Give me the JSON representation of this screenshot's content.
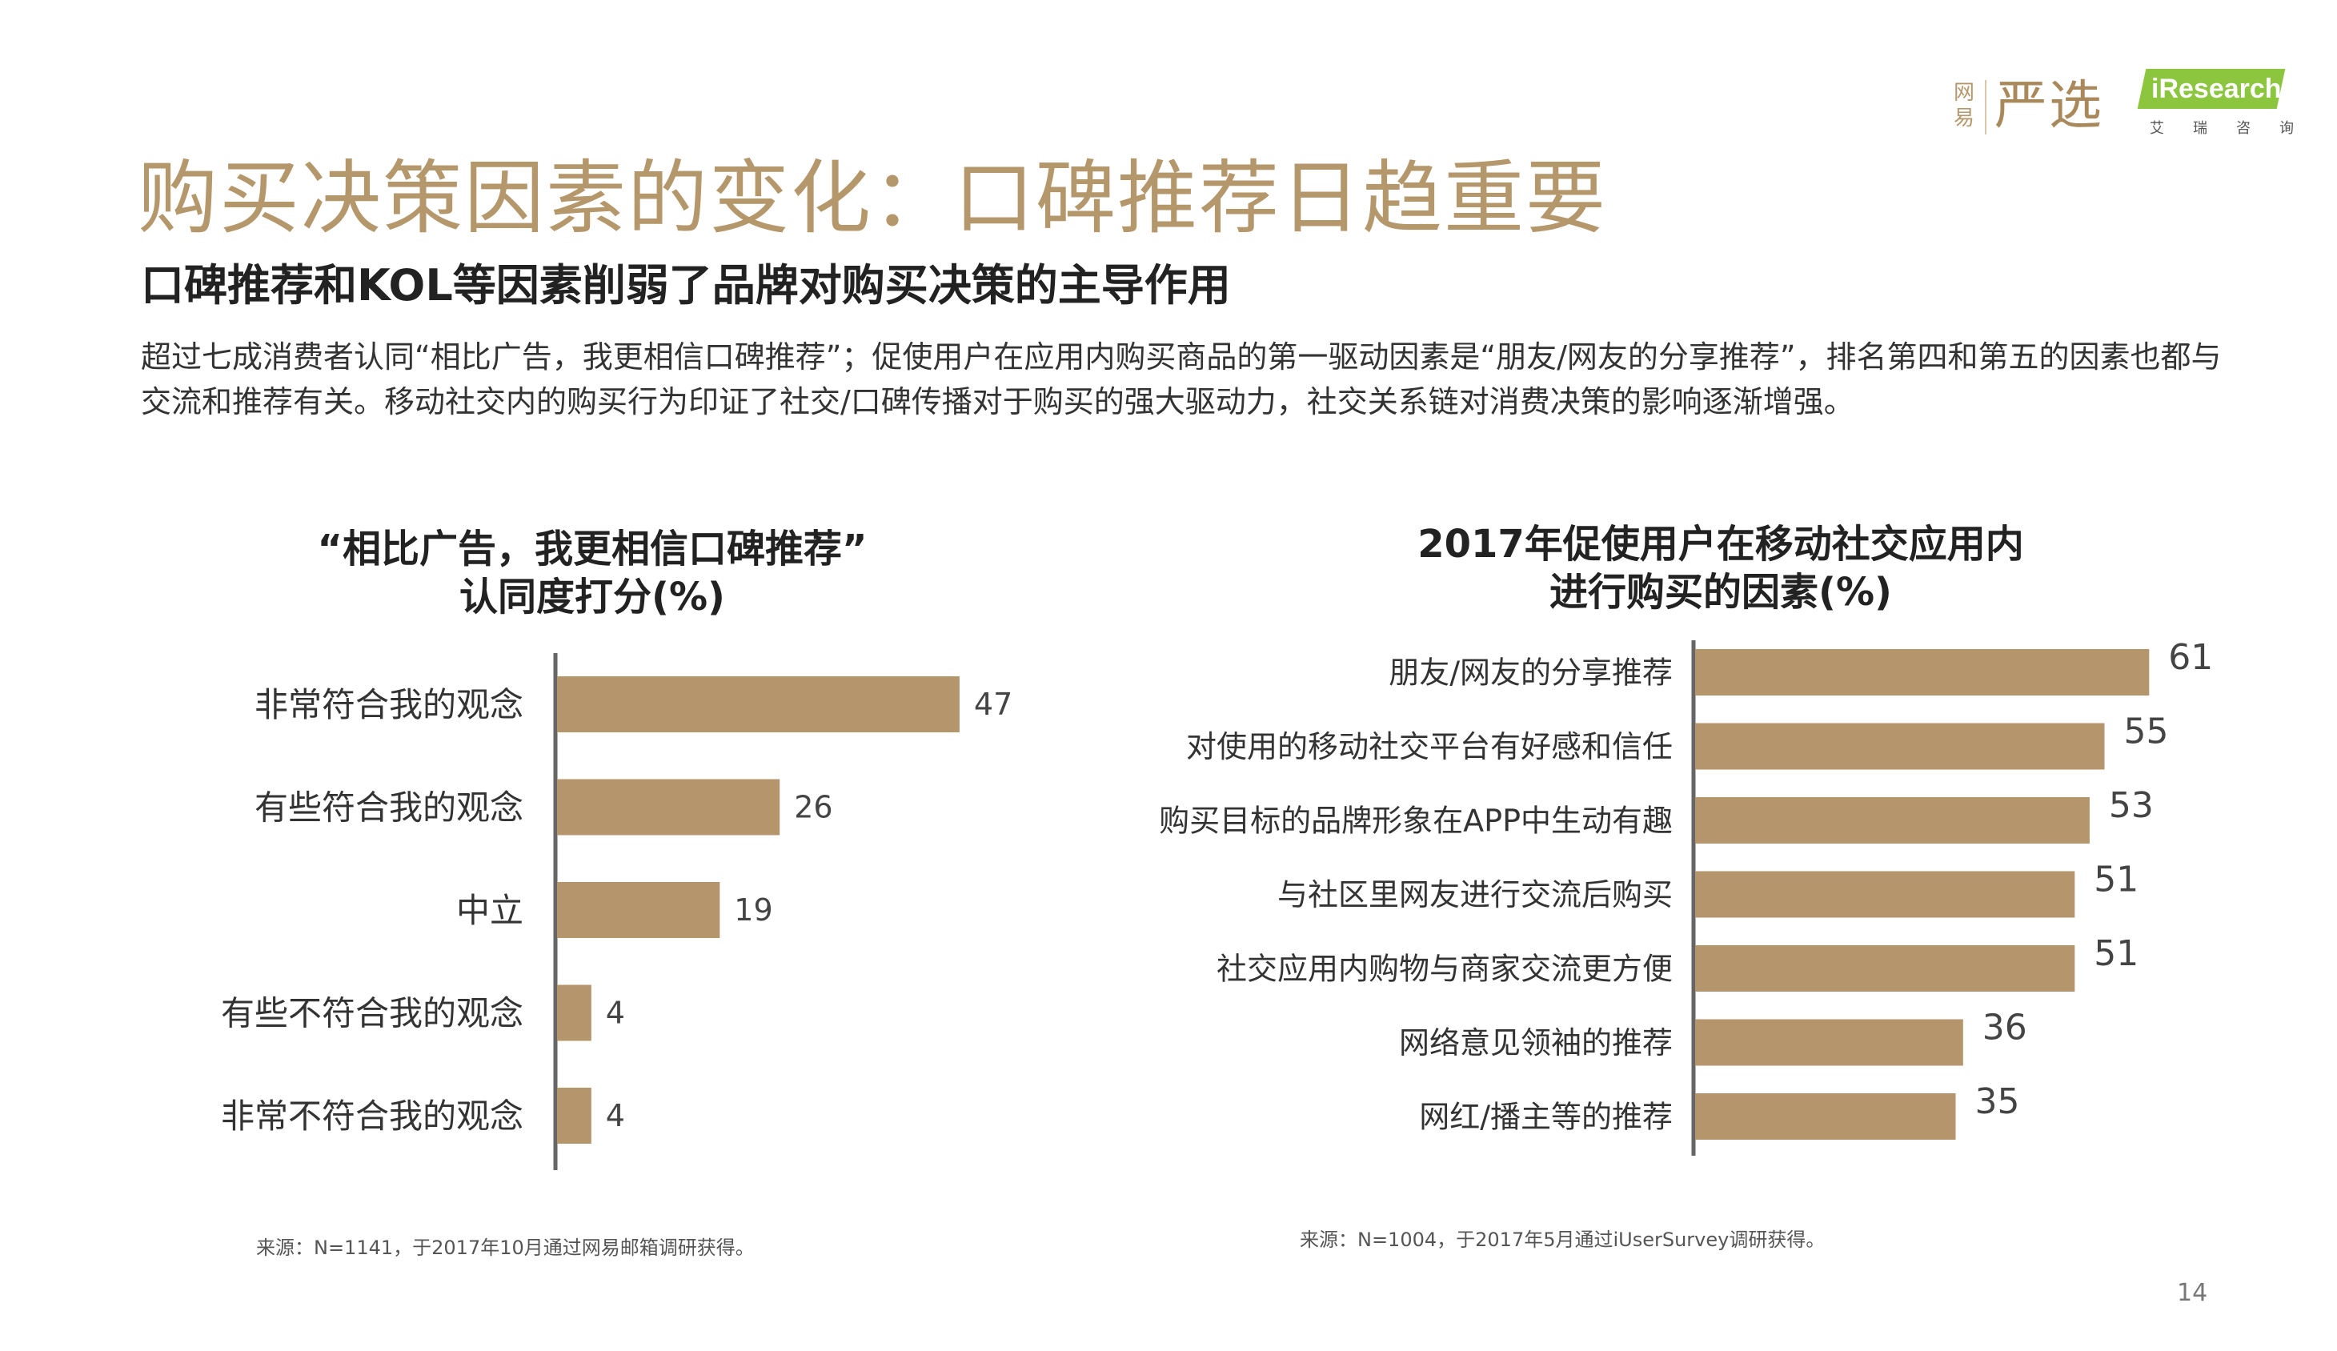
{
  "logos": {
    "yanxuan_small": "网易",
    "yanxuan_main": "严选",
    "iresearch_en": "iResearch",
    "iresearch_cn": [
      "艾",
      "瑞",
      "咨",
      "询"
    ],
    "bar_color": "#b5956c",
    "ir_color": "#8cc63f"
  },
  "header": {
    "title": "购买决策因素的变化：口碑推荐日趋重要",
    "subtitle": "口碑推荐和KOL等因素削弱了品牌对购买决策的主导作用",
    "description": "超过七成消费者认同“相比广告，我更相信口碑推荐”；促使用户在应用内购买商品的第一驱动因素是“朋友/网友的分享推荐”，排名第四和第五的因素也都与交流和推荐有关。移动社交内的购买行为印证了社交/口碑传播对于购买的强大驱动力，社交关系链对消费决策的影响逐渐增强。"
  },
  "chart_data": [
    {
      "type": "bar",
      "orientation": "horizontal",
      "title": "“相比广告，我更相信口碑推荐”",
      "title_line2": "认同度打分(%)",
      "categories": [
        "非常符合我的观念",
        "有些符合我的观念",
        "中立",
        "有些不符合我的观念",
        "非常不符合我的观念"
      ],
      "values": [
        47,
        26,
        19,
        4,
        4
      ],
      "xlim": [
        0,
        50
      ],
      "grid": false,
      "source": "来源：N=1141，于2017年10月通过网易邮箱调研获得。"
    },
    {
      "type": "bar",
      "orientation": "horizontal",
      "title": "2017年促使用户在移动社交应用内",
      "title_line2": "进行购买的因素(%)",
      "categories": [
        "朋友/网友的分享推荐",
        "对使用的移动社交平台有好感和信任",
        "购买目标的品牌形象在APP中生动有趣",
        "与社区里网友进行交流后购买",
        "社交应用内购物与商家交流更方便",
        "网络意见领袖的推荐",
        "网红/播主等的推荐"
      ],
      "values": [
        61,
        55,
        53,
        51,
        51,
        36,
        35
      ],
      "xlim": [
        0,
        65
      ],
      "grid": false,
      "source": "来源：N=1004，于2017年5月通过iUserSurvey调研获得。"
    }
  ],
  "footer": {
    "page_number": "14"
  }
}
